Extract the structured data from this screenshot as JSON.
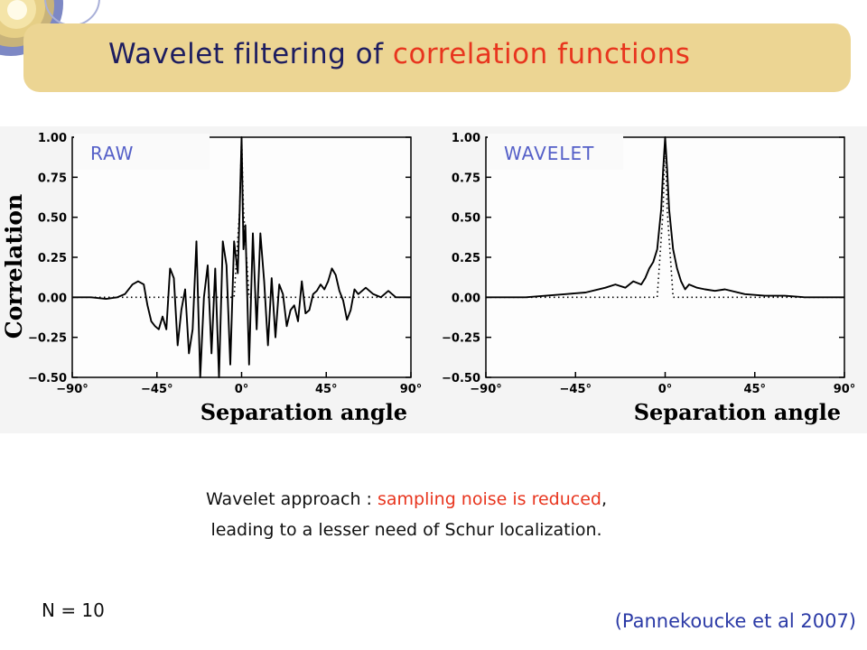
{
  "slide": {
    "title_main": "Wavelet filtering of ",
    "title_accent": "correlation functions",
    "caption_line1_prefix": "Wavelet approach : ",
    "caption_line1_highlight": "sampling noise is reduced",
    "caption_line1_suffix": ",",
    "caption_line2": "leading to a lesser need of Schur localization.",
    "n_label": "N = 10",
    "citation": "(Pannekoucke et al 2007)",
    "colors": {
      "banner": "#ecd593",
      "title": "#1d1d60",
      "accent": "#e8351e",
      "panel_label": "#5560c8",
      "citation": "#2b3aa6"
    }
  },
  "chart_data": [
    {
      "type": "line",
      "panel_label": "RAW",
      "xlabel": "Separation angle",
      "ylabel": "Correlation",
      "xlim": [
        -90,
        90
      ],
      "ylim": [
        -0.5,
        1.0
      ],
      "x_ticks": [
        -90,
        -45,
        0,
        45,
        90
      ],
      "x_tick_labels": [
        "−90°",
        "−45°",
        "0°",
        "45°",
        "90°"
      ],
      "y_ticks": [
        1.0,
        0.75,
        0.5,
        0.25,
        0.0,
        -0.25,
        -0.5
      ],
      "y_tick_labels": [
        "1.00",
        "0.75",
        "0.50",
        "0.25",
        "0.00",
        "−0.25",
        "−0.50"
      ],
      "series": [
        {
          "style": "solid",
          "x": [
            -90,
            -80,
            -72,
            -66,
            -62,
            -58,
            -55,
            -52,
            -50,
            -48,
            -46,
            -44,
            -42,
            -40,
            -38,
            -36,
            -34,
            -32,
            -30,
            -28,
            -26,
            -24,
            -22,
            -20,
            -18,
            -16,
            -14,
            -12,
            -10,
            -8,
            -6,
            -4,
            -2,
            -1,
            0,
            1,
            2,
            4,
            6,
            8,
            10,
            12,
            14,
            16,
            18,
            20,
            22,
            24,
            26,
            28,
            30,
            32,
            34,
            36,
            38,
            40,
            42,
            44,
            46,
            48,
            50,
            52,
            54,
            56,
            58,
            60,
            62,
            66,
            70,
            74,
            78,
            82,
            86,
            90
          ],
          "y": [
            0.0,
            0.0,
            -0.01,
            0.0,
            0.02,
            0.08,
            0.1,
            0.08,
            -0.05,
            -0.15,
            -0.18,
            -0.2,
            -0.12,
            -0.2,
            0.18,
            0.12,
            -0.3,
            -0.08,
            0.05,
            -0.35,
            -0.2,
            0.35,
            -0.5,
            0.0,
            0.2,
            -0.35,
            0.18,
            -0.5,
            0.35,
            0.2,
            -0.42,
            0.35,
            0.15,
            0.55,
            1.0,
            0.3,
            0.45,
            -0.42,
            0.4,
            -0.2,
            0.4,
            0.1,
            -0.3,
            0.12,
            -0.25,
            0.08,
            0.02,
            -0.18,
            -0.08,
            -0.05,
            -0.15,
            0.1,
            -0.1,
            -0.08,
            0.02,
            0.04,
            0.08,
            0.05,
            0.1,
            0.18,
            0.14,
            0.04,
            -0.02,
            -0.14,
            -0.08,
            0.05,
            0.02,
            0.06,
            0.02,
            0.0,
            0.04,
            0.0,
            0.0,
            0.0
          ]
        },
        {
          "style": "dotted",
          "x": [
            -90,
            -4,
            -1,
            0,
            1,
            4,
            90
          ],
          "y": [
            0.0,
            0.0,
            0.55,
            1.0,
            0.55,
            0.0,
            0.0
          ]
        }
      ]
    },
    {
      "type": "line",
      "panel_label": "WAVELET",
      "xlabel": "Separation angle",
      "ylabel": "",
      "xlim": [
        -90,
        90
      ],
      "ylim": [
        -0.5,
        1.0
      ],
      "x_ticks": [
        -90,
        -45,
        0,
        45,
        90
      ],
      "x_tick_labels": [
        "−90°",
        "−45°",
        "0°",
        "45°",
        "90°"
      ],
      "y_ticks": [
        1.0,
        0.75,
        0.5,
        0.25,
        0.0,
        -0.25,
        -0.5
      ],
      "y_tick_labels": [
        "1.00",
        "0.75",
        "0.50",
        "0.25",
        "0.00",
        "−0.25",
        "−0.50"
      ],
      "series": [
        {
          "style": "solid",
          "x": [
            -90,
            -70,
            -60,
            -50,
            -40,
            -30,
            -25,
            -20,
            -16,
            -12,
            -10,
            -8,
            -6,
            -4,
            -2,
            -1,
            0,
            1,
            2,
            4,
            6,
            8,
            10,
            12,
            16,
            20,
            25,
            30,
            40,
            50,
            60,
            70,
            80,
            90
          ],
          "y": [
            0.0,
            0.0,
            0.01,
            0.02,
            0.03,
            0.06,
            0.08,
            0.06,
            0.1,
            0.08,
            0.12,
            0.18,
            0.22,
            0.3,
            0.55,
            0.8,
            1.0,
            0.8,
            0.55,
            0.3,
            0.18,
            0.1,
            0.05,
            0.08,
            0.06,
            0.05,
            0.04,
            0.05,
            0.02,
            0.01,
            0.01,
            0.0,
            0.0,
            0.0
          ]
        },
        {
          "style": "dotted",
          "x": [
            -90,
            -4,
            -1,
            0,
            1,
            4,
            90
          ],
          "y": [
            0.0,
            0.0,
            0.55,
            1.0,
            0.55,
            0.0,
            0.0
          ]
        }
      ]
    }
  ]
}
